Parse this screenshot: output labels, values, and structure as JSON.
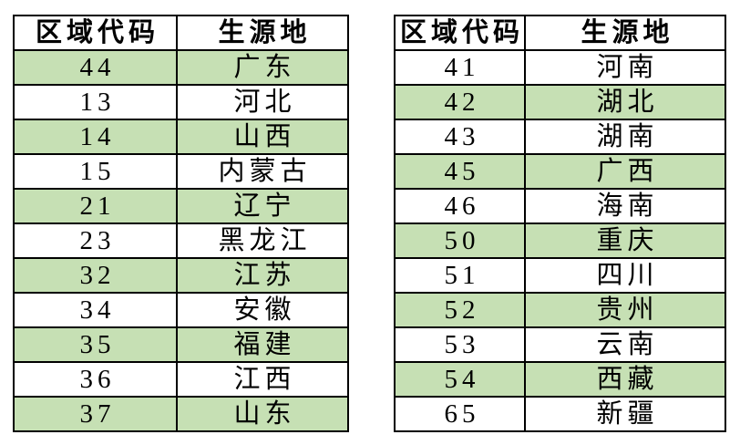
{
  "page": {
    "background": "#ffffff"
  },
  "colors": {
    "shaded_row": "#c6e0b4",
    "unshaded_row": "#ffffff",
    "border": "#000000",
    "text": "#000000"
  },
  "tables": [
    {
      "id": "left",
      "headers": [
        "区域代码",
        "生源地"
      ],
      "first_data_row_shaded": true,
      "rows": [
        {
          "code": "44",
          "origin": "广东"
        },
        {
          "code": "13",
          "origin": "河北"
        },
        {
          "code": "14",
          "origin": "山西"
        },
        {
          "code": "15",
          "origin": "内蒙古"
        },
        {
          "code": "21",
          "origin": "辽宁"
        },
        {
          "code": "23",
          "origin": "黑龙江"
        },
        {
          "code": "32",
          "origin": "江苏"
        },
        {
          "code": "34",
          "origin": "安徽"
        },
        {
          "code": "35",
          "origin": "福建"
        },
        {
          "code": "36",
          "origin": "江西"
        },
        {
          "code": "37",
          "origin": "山东"
        }
      ]
    },
    {
      "id": "right",
      "headers": [
        "区域代码",
        "生源地"
      ],
      "first_data_row_shaded": false,
      "rows": [
        {
          "code": "41",
          "origin": "河南"
        },
        {
          "code": "42",
          "origin": "湖北"
        },
        {
          "code": "43",
          "origin": "湖南"
        },
        {
          "code": "45",
          "origin": "广西"
        },
        {
          "code": "46",
          "origin": "海南"
        },
        {
          "code": "50",
          "origin": "重庆"
        },
        {
          "code": "51",
          "origin": "四川"
        },
        {
          "code": "52",
          "origin": "贵州"
        },
        {
          "code": "53",
          "origin": "云南"
        },
        {
          "code": "54",
          "origin": "西藏"
        },
        {
          "code": "65",
          "origin": "新疆"
        }
      ]
    }
  ]
}
